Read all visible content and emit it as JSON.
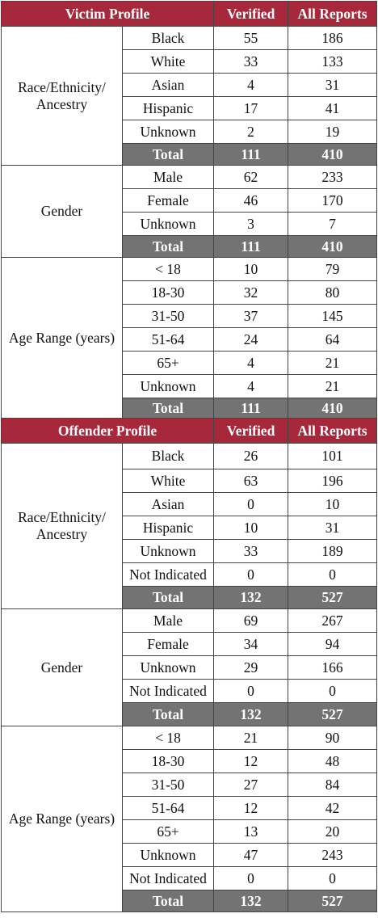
{
  "sections": [
    {
      "title": "Victim Profile",
      "col_verified": "Verified",
      "col_all": "All Reports",
      "groups": [
        {
          "category": "Race/Ethnicity/ Ancestry",
          "rows": [
            {
              "label": "Black",
              "verified": "55",
              "all": "186"
            },
            {
              "label": "White",
              "verified": "33",
              "all": "133"
            },
            {
              "label": "Asian",
              "verified": "4",
              "all": "31"
            },
            {
              "label": "Hispanic",
              "verified": "17",
              "all": "41"
            },
            {
              "label": "Unknown",
              "verified": "2",
              "all": "19"
            }
          ],
          "total": {
            "label": "Total",
            "verified": "111",
            "all": "410"
          }
        },
        {
          "category": "Gender",
          "rows": [
            {
              "label": "Male",
              "verified": "62",
              "all": "233"
            },
            {
              "label": "Female",
              "verified": "46",
              "all": "170"
            },
            {
              "label": "Unknown",
              "verified": "3",
              "all": "7"
            }
          ],
          "total": {
            "label": "Total",
            "verified": "111",
            "all": "410"
          }
        },
        {
          "category": "Age Range (years)",
          "rows": [
            {
              "label": "< 18",
              "verified": "10",
              "all": "79"
            },
            {
              "label": "18-30",
              "verified": "32",
              "all": "80"
            },
            {
              "label": "31-50",
              "verified": "37",
              "all": "145"
            },
            {
              "label": "51-64",
              "verified": "24",
              "all": "64"
            },
            {
              "label": "65+",
              "verified": "4",
              "all": "21"
            },
            {
              "label": "Unknown",
              "verified": "4",
              "all": "21"
            }
          ],
          "total": {
            "label": "Total",
            "verified": "111",
            "all": "410"
          }
        }
      ]
    },
    {
      "title": "Offender Profile",
      "col_verified": "Verified",
      "col_all": "All Reports",
      "groups": [
        {
          "category": "Race/Ethnicity/ Ancestry",
          "rows": [
            {
              "label": "Black",
              "verified": "26",
              "all": "101"
            },
            {
              "label": "White",
              "verified": "63",
              "all": "196"
            },
            {
              "label": "Asian",
              "verified": "0",
              "all": "10"
            },
            {
              "label": "Hispanic",
              "verified": "10",
              "all": "31"
            },
            {
              "label": "Unknown",
              "verified": "33",
              "all": "189"
            },
            {
              "label": "Not Indicated",
              "verified": "0",
              "all": "0"
            }
          ],
          "total": {
            "label": "Total",
            "verified": "132",
            "all": "527"
          }
        },
        {
          "category": "Gender",
          "rows": [
            {
              "label": "Male",
              "verified": "69",
              "all": "267"
            },
            {
              "label": "Female",
              "verified": "34",
              "all": "94"
            },
            {
              "label": "Unknown",
              "verified": "29",
              "all": "166"
            },
            {
              "label": "Not Indicated",
              "verified": "0",
              "all": "0"
            }
          ],
          "total": {
            "label": "Total",
            "verified": "132",
            "all": "527"
          }
        },
        {
          "category": "Age Range (years)",
          "rows": [
            {
              "label": "< 18",
              "verified": "21",
              "all": "90"
            },
            {
              "label": "18-30",
              "verified": "12",
              "all": "48"
            },
            {
              "label": "31-50",
              "verified": "27",
              "all": "84"
            },
            {
              "label": "51-64",
              "verified": "12",
              "all": "42"
            },
            {
              "label": "65+",
              "verified": "13",
              "all": "20"
            },
            {
              "label": "Unknown",
              "verified": "47",
              "all": "243"
            },
            {
              "label": "Not Indicated",
              "verified": "0",
              "all": "0"
            }
          ],
          "total": {
            "label": "Total",
            "verified": "132",
            "all": "527"
          }
        }
      ]
    }
  ],
  "colors": {
    "header_bg": "#a8283b",
    "total_bg": "#737373",
    "border": "#444444"
  }
}
